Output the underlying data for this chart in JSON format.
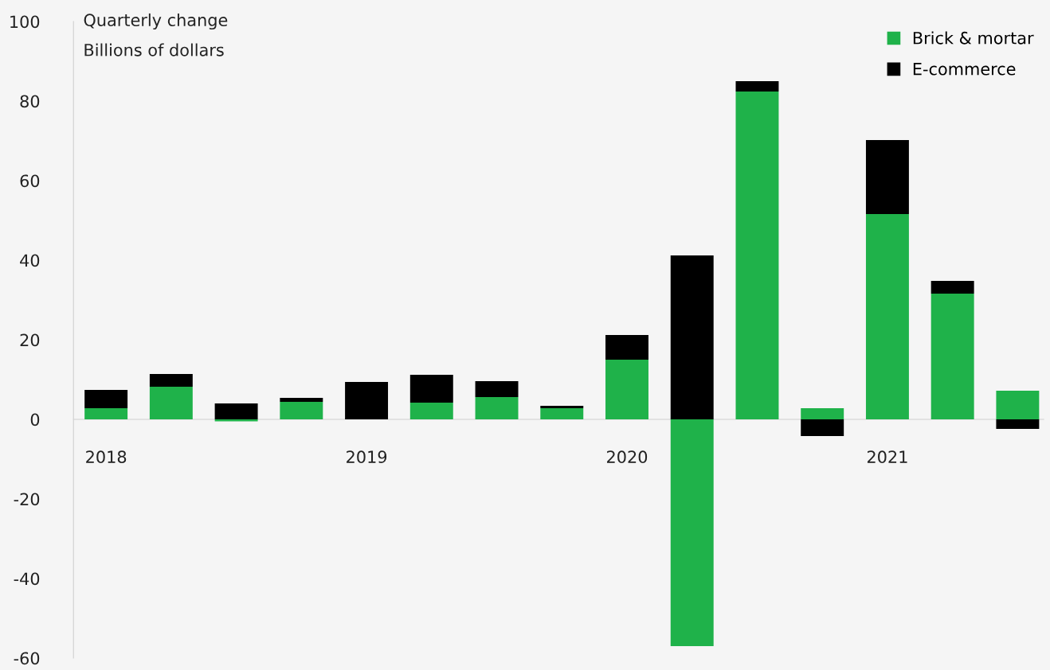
{
  "chart_data": {
    "type": "bar",
    "title": "Quarterly change",
    "subtitle": "Billions of dollars",
    "categories": [
      "2018",
      null,
      null,
      null,
      "2019",
      null,
      null,
      null,
      "2020",
      null,
      null,
      null,
      "2021",
      null,
      null
    ],
    "stacked": true,
    "series": [
      {
        "name": "Brick & mortar",
        "color": "#1fb24a",
        "values": [
          2.8,
          8.2,
          -0.5,
          4.4,
          null,
          4.2,
          5.6,
          2.8,
          15,
          -57,
          82.4,
          2.8,
          51.6,
          31.6,
          7.2
        ]
      },
      {
        "name": "E-commerce",
        "color": "#000000",
        "values": [
          4.6,
          3.2,
          4.0,
          1.0,
          9.4,
          7.0,
          4.0,
          0.6,
          6.2,
          41.2,
          2.6,
          -4.2,
          18.6,
          3.2,
          -2.4
        ]
      }
    ],
    "ylim": [
      -60,
      100
    ],
    "yticks": [
      -60,
      -40,
      -20,
      0,
      20,
      40,
      60,
      80,
      100
    ],
    "grid": false,
    "legend": "top right"
  }
}
